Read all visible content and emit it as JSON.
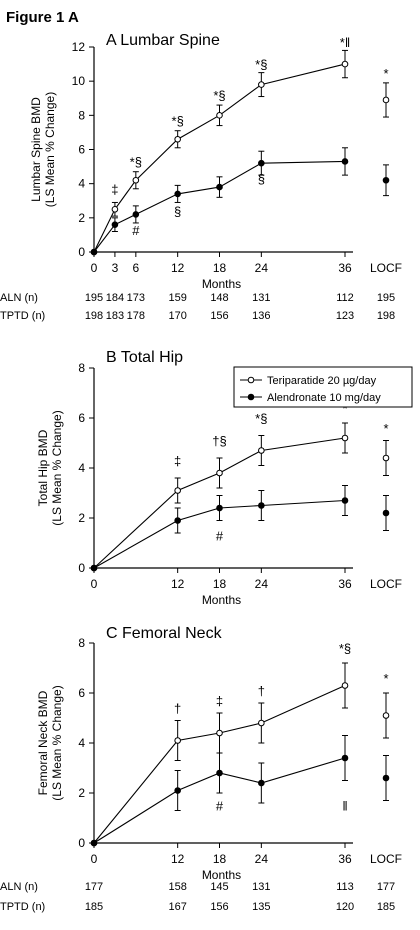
{
  "figure_title": "Figure 1 A",
  "legend": [
    {
      "label": "Teriparatide 20 µg/day",
      "marker": "open"
    },
    {
      "label": "Alendronate 10 mg/day",
      "marker": "filled"
    }
  ],
  "chart_data": [
    {
      "type": "line",
      "title": "A  Lumbar Spine",
      "ylabel_lines": [
        "Lumbar Spine BMD",
        "(LS Mean % Change)"
      ],
      "xlabel": "Months",
      "x": [
        0,
        3,
        6,
        12,
        18,
        24,
        36
      ],
      "xticks": [
        "0",
        "3",
        "6",
        "12",
        "18",
        "24",
        "36"
      ],
      "extra_xtick": "LOCF",
      "ylim": [
        0,
        12
      ],
      "yticks": [
        "0",
        "2",
        "4",
        "6",
        "8",
        "10",
        "12"
      ],
      "series": [
        {
          "name": "Teriparatide 20 µg/day",
          "marker": "open",
          "values": [
            0,
            2.5,
            4.2,
            6.6,
            8.0,
            9.8,
            11.0
          ],
          "err": [
            0,
            0.4,
            0.5,
            0.5,
            0.6,
            0.7,
            0.8
          ],
          "locf": 8.9,
          "locf_err": 1.0
        },
        {
          "name": "Alendronate 10 mg/day",
          "marker": "filled",
          "values": [
            0,
            1.6,
            2.2,
            3.4,
            3.8,
            5.2,
            5.3
          ],
          "err": [
            0,
            0.4,
            0.5,
            0.5,
            0.6,
            0.7,
            0.8
          ],
          "locf": 4.2,
          "locf_err": 0.9
        }
      ],
      "annotations": [
        {
          "text": "‡",
          "x": 3,
          "y": 3.4
        },
        {
          "text": "*§",
          "x": 6,
          "y": 5.0
        },
        {
          "text": "*§",
          "x": 12,
          "y": 7.4
        },
        {
          "text": "*§",
          "x": 18,
          "y": 8.9
        },
        {
          "text": "*§",
          "x": 24,
          "y": 10.7
        },
        {
          "text": "*‖",
          "x": 36,
          "y": 12.0
        },
        {
          "text": "#",
          "x": 6,
          "y": 1.0
        },
        {
          "text": "§",
          "x": 12,
          "y": 2.1
        },
        {
          "text": "§",
          "x": 24,
          "y": 4.0
        },
        {
          "text": "*",
          "x": "LOCF",
          "y": 10.2
        }
      ],
      "n_table": [
        {
          "label": "ALN (n)",
          "values": [
            "195",
            "184",
            "173",
            "159",
            "148",
            "131",
            "112",
            "195"
          ]
        },
        {
          "label": "TPTD (n)",
          "values": [
            "198",
            "183",
            "178",
            "170",
            "156",
            "136",
            "123",
            "198"
          ]
        }
      ]
    },
    {
      "type": "line",
      "title": "B  Total Hip",
      "ylabel_lines": [
        "Total Hip BMD",
        "(LS Mean % Change)"
      ],
      "xlabel": "Months",
      "x": [
        0,
        12,
        18,
        24,
        36
      ],
      "xticks": [
        "0",
        "12",
        "18",
        "24",
        "36"
      ],
      "extra_xtick": "LOCF",
      "ylim": [
        0,
        8
      ],
      "yticks": [
        "0",
        "2",
        "4",
        "6",
        "8"
      ],
      "series": [
        {
          "name": "Teriparatide 20 µg/day",
          "marker": "open",
          "values": [
            0,
            3.1,
            3.8,
            4.7,
            5.2
          ],
          "err": [
            0,
            0.5,
            0.6,
            0.6,
            0.6
          ],
          "locf": 4.4,
          "locf_err": 0.7
        },
        {
          "name": "Alendronate 10 mg/day",
          "marker": "filled",
          "values": [
            0,
            1.9,
            2.4,
            2.5,
            2.7
          ],
          "err": [
            0,
            0.5,
            0.5,
            0.6,
            0.6
          ],
          "locf": 2.2,
          "locf_err": 0.7
        }
      ],
      "annotations": [
        {
          "text": "‡",
          "x": 12,
          "y": 4.1
        },
        {
          "text": "†§",
          "x": 18,
          "y": 4.9
        },
        {
          "text": "*§",
          "x": 24,
          "y": 5.8
        },
        {
          "text": "*",
          "x": 36,
          "y": 6.2
        },
        {
          "text": "#",
          "x": 18,
          "y": 1.1
        },
        {
          "text": "*",
          "x": "LOCF",
          "y": 5.4
        }
      ]
    },
    {
      "type": "line",
      "title": "C  Femoral Neck",
      "ylabel_lines": [
        "Femoral Neck BMD",
        "(LS Mean % Change)"
      ],
      "xlabel": "Months",
      "x": [
        0,
        12,
        18,
        24,
        36
      ],
      "xticks": [
        "0",
        "12",
        "18",
        "24",
        "36"
      ],
      "extra_xtick": "LOCF",
      "ylim": [
        0,
        8
      ],
      "yticks": [
        "0",
        "2",
        "4",
        "6",
        "8"
      ],
      "series": [
        {
          "name": "Teriparatide 20 µg/day",
          "marker": "open",
          "values": [
            0,
            4.1,
            4.4,
            4.8,
            6.3
          ],
          "err": [
            0,
            0.8,
            0.8,
            0.8,
            0.9
          ],
          "locf": 5.1,
          "locf_err": 0.9
        },
        {
          "name": "Alendronate 10 mg/day",
          "marker": "filled",
          "values": [
            0,
            2.1,
            2.8,
            2.4,
            3.4
          ],
          "err": [
            0,
            0.8,
            0.8,
            0.8,
            0.9
          ],
          "locf": 2.6,
          "locf_err": 0.9
        }
      ],
      "annotations": [
        {
          "text": "†",
          "x": 12,
          "y": 5.2
        },
        {
          "text": "‡",
          "x": 18,
          "y": 5.5
        },
        {
          "text": "†",
          "x": 24,
          "y": 5.9
        },
        {
          "text": "*§",
          "x": 36,
          "y": 7.6
        },
        {
          "text": "#",
          "x": 18,
          "y": 1.3
        },
        {
          "text": "‖",
          "x": 36,
          "y": 1.3
        },
        {
          "text": "*",
          "x": "LOCF",
          "y": 6.4
        }
      ],
      "n_table": [
        {
          "label": "ALN (n)",
          "values": [
            "177",
            "158",
            "145",
            "131",
            "113",
            "177"
          ]
        },
        {
          "label": "TPTD (n)",
          "values": [
            "185",
            "167",
            "156",
            "135",
            "120",
            "185"
          ]
        }
      ]
    }
  ]
}
